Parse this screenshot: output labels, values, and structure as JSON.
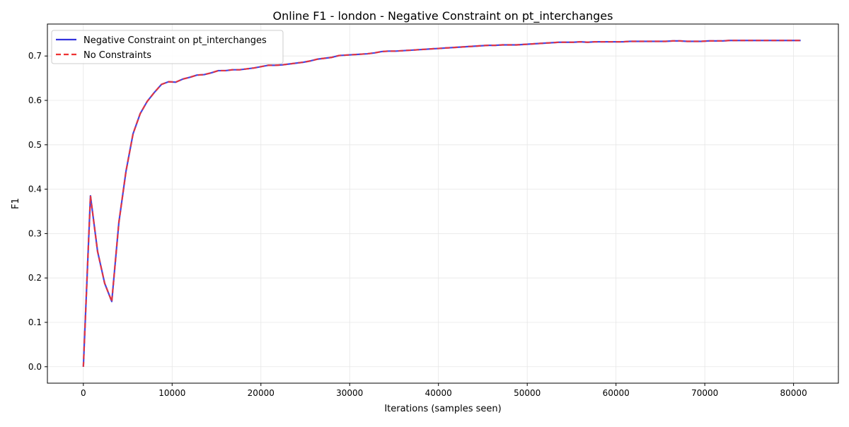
{
  "chart_data": {
    "type": "line",
    "title": "Online F1 - london - Negative Constraint on pt_interchanges",
    "xlabel": "Iterations (samples seen)",
    "ylabel": "F1",
    "xlim": [
      -4050,
      85050
    ],
    "ylim": [
      -0.037,
      0.772
    ],
    "xticks": [
      0,
      10000,
      20000,
      30000,
      40000,
      50000,
      60000,
      70000,
      80000
    ],
    "yticks": [
      0.0,
      0.1,
      0.2,
      0.3,
      0.4,
      0.5,
      0.6,
      0.7
    ],
    "xtick_labels": [
      "0",
      "10000",
      "20000",
      "30000",
      "40000",
      "50000",
      "60000",
      "70000",
      "80000"
    ],
    "ytick_labels": [
      "0.0",
      "0.1",
      "0.2",
      "0.3",
      "0.4",
      "0.5",
      "0.6",
      "0.7"
    ],
    "grid": true,
    "legend_position": "upper left",
    "x": [
      0,
      800,
      1600,
      2400,
      3200,
      4000,
      4800,
      5600,
      6400,
      7200,
      8000,
      8800,
      9600,
      10400,
      11200,
      12000,
      12800,
      13600,
      14400,
      15200,
      16000,
      16800,
      17600,
      18400,
      19200,
      20000,
      20800,
      21600,
      22400,
      23200,
      24000,
      24800,
      25600,
      26400,
      27200,
      28000,
      28800,
      29600,
      30400,
      31200,
      32000,
      32800,
      33600,
      34400,
      35200,
      36000,
      36800,
      37600,
      38400,
      39200,
      40000,
      40800,
      41600,
      42400,
      43200,
      44000,
      44800,
      45600,
      46400,
      47200,
      48000,
      48800,
      49600,
      50400,
      51200,
      52000,
      52800,
      53600,
      54400,
      55200,
      56000,
      56800,
      57600,
      58400,
      59200,
      60000,
      60800,
      61600,
      62400,
      63200,
      64000,
      64800,
      65600,
      66400,
      67200,
      68000,
      68800,
      69600,
      70400,
      71200,
      72000,
      72800,
      73600,
      74400,
      75200,
      76000,
      76800,
      77600,
      78400,
      79200,
      80000,
      80800
    ],
    "series": [
      {
        "name": "Negative Constraint on pt_interchanges",
        "color": "#3333dd",
        "linestyle": "solid",
        "values": [
          0.0,
          0.385,
          0.26,
          0.188,
          0.147,
          0.325,
          0.44,
          0.525,
          0.57,
          0.598,
          0.618,
          0.636,
          0.642,
          0.641,
          0.648,
          0.652,
          0.657,
          0.658,
          0.662,
          0.667,
          0.667,
          0.669,
          0.669,
          0.671,
          0.673,
          0.676,
          0.679,
          0.679,
          0.68,
          0.682,
          0.684,
          0.686,
          0.689,
          0.693,
          0.695,
          0.697,
          0.701,
          0.702,
          0.703,
          0.704,
          0.705,
          0.707,
          0.71,
          0.711,
          0.711,
          0.712,
          0.713,
          0.714,
          0.715,
          0.716,
          0.717,
          0.718,
          0.719,
          0.72,
          0.721,
          0.722,
          0.723,
          0.724,
          0.724,
          0.725,
          0.725,
          0.725,
          0.726,
          0.727,
          0.728,
          0.729,
          0.73,
          0.731,
          0.731,
          0.731,
          0.732,
          0.731,
          0.732,
          0.732,
          0.732,
          0.732,
          0.732,
          0.733,
          0.733,
          0.733,
          0.733,
          0.733,
          0.733,
          0.734,
          0.734,
          0.733,
          0.733,
          0.733,
          0.734,
          0.734,
          0.734,
          0.735,
          0.735,
          0.735,
          0.735,
          0.735,
          0.735,
          0.735,
          0.735,
          0.735,
          0.735,
          0.735
        ]
      },
      {
        "name": "No Constraints",
        "color": "#ee3333",
        "linestyle": "dashed",
        "values": [
          0.0,
          0.385,
          0.26,
          0.188,
          0.147,
          0.325,
          0.44,
          0.525,
          0.57,
          0.598,
          0.618,
          0.636,
          0.642,
          0.641,
          0.648,
          0.652,
          0.657,
          0.658,
          0.662,
          0.667,
          0.667,
          0.669,
          0.669,
          0.671,
          0.673,
          0.676,
          0.679,
          0.679,
          0.68,
          0.682,
          0.684,
          0.686,
          0.689,
          0.693,
          0.695,
          0.697,
          0.701,
          0.702,
          0.703,
          0.704,
          0.705,
          0.707,
          0.71,
          0.711,
          0.711,
          0.712,
          0.713,
          0.714,
          0.715,
          0.716,
          0.717,
          0.718,
          0.719,
          0.72,
          0.721,
          0.722,
          0.723,
          0.724,
          0.724,
          0.725,
          0.725,
          0.725,
          0.726,
          0.727,
          0.728,
          0.729,
          0.73,
          0.731,
          0.731,
          0.731,
          0.732,
          0.731,
          0.732,
          0.732,
          0.732,
          0.732,
          0.732,
          0.733,
          0.733,
          0.733,
          0.733,
          0.733,
          0.733,
          0.734,
          0.734,
          0.733,
          0.733,
          0.733,
          0.734,
          0.734,
          0.734,
          0.735,
          0.735,
          0.735,
          0.735,
          0.735,
          0.735,
          0.735,
          0.735,
          0.735,
          0.735,
          0.735
        ]
      }
    ]
  }
}
